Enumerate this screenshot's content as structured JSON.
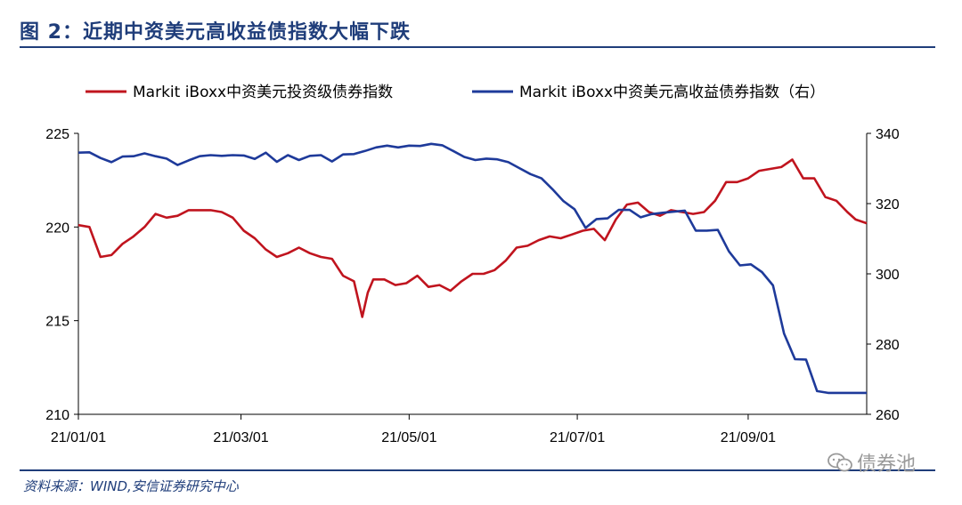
{
  "header": {
    "title": "图 2：近期中资美元高收益债指数大幅下跌"
  },
  "footer": {
    "source": "资料来源：WIND,安信证券研究中心",
    "watermark": "债券池"
  },
  "colors": {
    "accent": "#1f3d7a",
    "series_red": "#c0141e",
    "series_blue": "#1e3a9a"
  },
  "chart_data": {
    "type": "line",
    "title": "",
    "xlabel": "",
    "ylabel": "",
    "x_ticks": [
      "21/01/01",
      "21/03/01",
      "21/05/01",
      "21/07/01",
      "21/09/01"
    ],
    "xlim": [
      "2021-01-01",
      "2021-10-14"
    ],
    "ylim_left": [
      210,
      225
    ],
    "yticks_left": [
      "225",
      "220",
      "215",
      "210"
    ],
    "ylim_right": [
      260,
      340
    ],
    "yticks_right": [
      "340",
      "320",
      "300",
      "280",
      "260"
    ],
    "legend_position": "top",
    "grid": false,
    "series": [
      {
        "name": "Markit iBoxx中资美元投资级债券指数",
        "axis": "left",
        "color": "#c0141e",
        "x": [
          "2021-01-01",
          "2021-01-05",
          "2021-01-09",
          "2021-01-13",
          "2021-01-17",
          "2021-01-21",
          "2021-01-25",
          "2021-01-29",
          "2021-02-02",
          "2021-02-06",
          "2021-02-10",
          "2021-02-14",
          "2021-02-18",
          "2021-02-22",
          "2021-02-26",
          "2021-03-02",
          "2021-03-06",
          "2021-03-10",
          "2021-03-14",
          "2021-03-18",
          "2021-03-22",
          "2021-03-26",
          "2021-03-30",
          "2021-04-03",
          "2021-04-07",
          "2021-04-11",
          "2021-04-14",
          "2021-04-16",
          "2021-04-18",
          "2021-04-22",
          "2021-04-26",
          "2021-04-30",
          "2021-05-04",
          "2021-05-08",
          "2021-05-12",
          "2021-05-16",
          "2021-05-20",
          "2021-05-24",
          "2021-05-28",
          "2021-06-01",
          "2021-06-05",
          "2021-06-09",
          "2021-06-13",
          "2021-06-17",
          "2021-06-21",
          "2021-06-25",
          "2021-06-29",
          "2021-07-03",
          "2021-07-07",
          "2021-07-11",
          "2021-07-15",
          "2021-07-19",
          "2021-07-23",
          "2021-07-27",
          "2021-07-31",
          "2021-08-04",
          "2021-08-08",
          "2021-08-12",
          "2021-08-16",
          "2021-08-20",
          "2021-08-24",
          "2021-08-28",
          "2021-09-01",
          "2021-09-05",
          "2021-09-09",
          "2021-09-13",
          "2021-09-17",
          "2021-09-21",
          "2021-09-25",
          "2021-09-29",
          "2021-10-03",
          "2021-10-07",
          "2021-10-10",
          "2021-10-14"
        ],
        "values": [
          220.1,
          220.0,
          218.4,
          218.5,
          219.1,
          219.5,
          220.0,
          220.7,
          220.5,
          220.6,
          220.9,
          220.9,
          220.9,
          220.8,
          220.5,
          219.8,
          219.4,
          218.8,
          218.4,
          218.6,
          218.9,
          218.6,
          218.4,
          218.3,
          217.4,
          217.1,
          215.2,
          216.5,
          217.2,
          217.2,
          216.9,
          217.0,
          217.4,
          216.8,
          216.9,
          216.6,
          217.1,
          217.5,
          217.5,
          217.7,
          218.2,
          218.9,
          219.0,
          219.3,
          219.5,
          219.4,
          219.6,
          219.8,
          219.9,
          219.3,
          220.4,
          221.2,
          221.3,
          220.8,
          220.6,
          220.9,
          220.8,
          220.7,
          220.8,
          221.4,
          222.4,
          222.4,
          222.6,
          223.0,
          223.1,
          223.2,
          223.6,
          222.6,
          222.6,
          221.6,
          221.4,
          220.8,
          220.4,
          220.2
        ]
      },
      {
        "name": "Markit iBoxx中资美元高收益债券指数（右）",
        "axis": "right",
        "color": "#1e3a9a",
        "x": [
          "2021-01-01",
          "2021-01-05",
          "2021-01-09",
          "2021-01-13",
          "2021-01-17",
          "2021-01-21",
          "2021-01-25",
          "2021-01-29",
          "2021-02-02",
          "2021-02-06",
          "2021-02-10",
          "2021-02-14",
          "2021-02-18",
          "2021-02-22",
          "2021-02-26",
          "2021-03-02",
          "2021-03-06",
          "2021-03-10",
          "2021-03-14",
          "2021-03-18",
          "2021-03-22",
          "2021-03-26",
          "2021-03-30",
          "2021-04-03",
          "2021-04-07",
          "2021-04-11",
          "2021-04-15",
          "2021-04-19",
          "2021-04-23",
          "2021-04-27",
          "2021-05-01",
          "2021-05-05",
          "2021-05-09",
          "2021-05-13",
          "2021-05-17",
          "2021-05-21",
          "2021-05-25",
          "2021-05-29",
          "2021-06-02",
          "2021-06-06",
          "2021-06-10",
          "2021-06-14",
          "2021-06-18",
          "2021-06-22",
          "2021-06-26",
          "2021-06-30",
          "2021-07-04",
          "2021-07-08",
          "2021-07-12",
          "2021-07-16",
          "2021-07-20",
          "2021-07-24",
          "2021-07-28",
          "2021-08-01",
          "2021-08-05",
          "2021-08-09",
          "2021-08-13",
          "2021-08-17",
          "2021-08-21",
          "2021-08-25",
          "2021-08-29",
          "2021-09-02",
          "2021-09-06",
          "2021-09-10",
          "2021-09-14",
          "2021-09-18",
          "2021-09-22",
          "2021-09-26",
          "2021-09-30",
          "2021-10-04",
          "2021-10-08",
          "2021-10-11",
          "2021-10-14"
        ],
        "values": [
          334.5,
          334.6,
          333.0,
          331.8,
          333.4,
          333.5,
          334.3,
          333.5,
          332.8,
          331.0,
          332.3,
          333.5,
          333.8,
          333.6,
          333.8,
          333.7,
          332.7,
          334.5,
          331.9,
          333.8,
          332.4,
          333.6,
          333.8,
          332.0,
          334.0,
          334.1,
          335.0,
          336.0,
          336.5,
          336.0,
          336.5,
          336.4,
          337.0,
          336.6,
          335.0,
          333.3,
          332.4,
          332.8,
          332.6,
          331.8,
          330.1,
          328.4,
          327.2,
          324.1,
          320.7,
          318.4,
          313.1,
          315.6,
          315.8,
          318.2,
          318.2,
          316.1,
          317.0,
          317.4,
          317.7,
          318.0,
          312.3,
          312.3,
          312.5,
          306.4,
          302.4,
          302.7,
          300.5,
          296.7,
          283.0,
          275.7,
          275.6,
          266.6,
          266.1,
          266.1,
          266.1,
          266.1,
          266.1
        ]
      }
    ]
  }
}
